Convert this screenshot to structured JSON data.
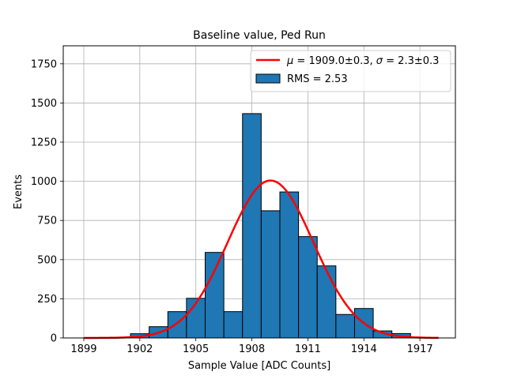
{
  "chart_data": {
    "type": "bar",
    "title": "Baseline value, Ped Run",
    "xlabel": "Sample Value [ADC Counts]",
    "ylabel": "Events",
    "xlim": [
      1897.9,
      1918.9
    ],
    "ylim": [
      0,
      1865
    ],
    "xticks": [
      1899,
      1902,
      1905,
      1908,
      1911,
      1914,
      1917
    ],
    "yticks": [
      0,
      250,
      500,
      750,
      1000,
      1250,
      1500,
      1750
    ],
    "grid": true,
    "legend_position": "top-right",
    "bin_width": 1,
    "histogram": {
      "name": "RMS = 2.53",
      "color": "#1f77b4",
      "bins": [
        {
          "center": 1902,
          "count": 27
        },
        {
          "center": 1903,
          "count": 72
        },
        {
          "center": 1904,
          "count": 168
        },
        {
          "center": 1905,
          "count": 253
        },
        {
          "center": 1906,
          "count": 546
        },
        {
          "center": 1907,
          "count": 168
        },
        {
          "center": 1908,
          "count": 1432
        },
        {
          "center": 1909,
          "count": 812
        },
        {
          "center": 1910,
          "count": 932
        },
        {
          "center": 1911,
          "count": 647
        },
        {
          "center": 1912,
          "count": 460
        },
        {
          "center": 1913,
          "count": 150
        },
        {
          "center": 1914,
          "count": 188
        },
        {
          "center": 1915,
          "count": 45
        },
        {
          "center": 1916,
          "count": 28
        }
      ]
    },
    "fit": {
      "name_parts": {
        "mu_sym": "μ",
        "mu_text": " = 1909.0±0.3, ",
        "sigma_sym": "σ",
        "sigma_text": " = 2.3±0.3"
      },
      "mu": 1909.0,
      "sigma": 2.3,
      "amplitude": 1005,
      "x_range": [
        1899,
        1918
      ],
      "color": "#ff0000"
    }
  }
}
